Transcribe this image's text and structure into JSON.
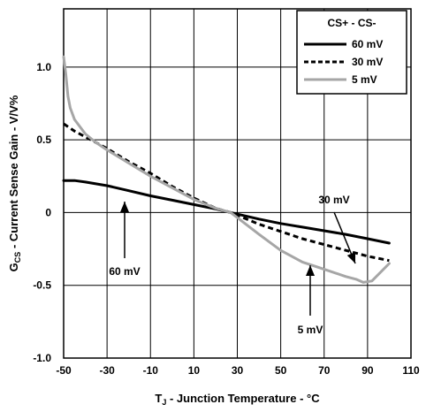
{
  "chart_data": {
    "type": "line",
    "xlabel_main": "T",
    "xlabel_sub": "J",
    "xlabel_rest": " - Junction Temperature - °C",
    "ylabel_main": "G",
    "ylabel_sub": "CS",
    "ylabel_rest": " - Current Sense Gain - V/V%",
    "xlim": [
      -50,
      110
    ],
    "ylim": [
      -1.0,
      1.4
    ],
    "x_ticks": [
      -50,
      -30,
      -10,
      10,
      30,
      50,
      70,
      90,
      110
    ],
    "x_tick_labels": [
      "-50",
      "-30",
      "-10",
      "10",
      "30",
      "50",
      "70",
      "90",
      "110"
    ],
    "y_ticks": [
      -1.0,
      -0.5,
      0,
      0.5,
      1.0
    ],
    "y_tick_labels": [
      "-1.0",
      "-0.5",
      "0",
      "0.5",
      "1.0"
    ],
    "grid": true,
    "legend_position": "top-right",
    "legend_title": "CS+ - CS-",
    "series": [
      {
        "name": "60 mV",
        "style": "solid",
        "color": "#000000",
        "x": [
          -50,
          -45,
          -40,
          -30,
          -20,
          -10,
          0,
          10,
          20,
          27,
          40,
          50,
          60,
          70,
          80,
          90,
          100
        ],
        "y": [
          0.22,
          0.22,
          0.21,
          0.185,
          0.15,
          0.115,
          0.085,
          0.055,
          0.025,
          0.0,
          -0.045,
          -0.075,
          -0.1,
          -0.125,
          -0.15,
          -0.18,
          -0.21
        ]
      },
      {
        "name": "30 mV",
        "style": "dashed",
        "color": "#000000",
        "x": [
          -50,
          -45,
          -40,
          -30,
          -20,
          -10,
          0,
          10,
          20,
          27,
          40,
          50,
          60,
          70,
          80,
          90,
          100
        ],
        "y": [
          0.61,
          0.56,
          0.52,
          0.44,
          0.35,
          0.27,
          0.18,
          0.1,
          0.03,
          0.0,
          -0.08,
          -0.13,
          -0.18,
          -0.22,
          -0.26,
          -0.3,
          -0.33
        ]
      },
      {
        "name": "5 mV",
        "style": "solid",
        "color": "#a6a6a6",
        "x": [
          -50,
          -49,
          -48,
          -47,
          -45,
          -42,
          -40,
          -35,
          -30,
          -20,
          -10,
          0,
          10,
          20,
          27,
          40,
          50,
          60,
          70,
          80,
          85,
          88,
          92,
          100
        ],
        "y": [
          1.07,
          0.95,
          0.8,
          0.72,
          0.64,
          0.58,
          0.54,
          0.48,
          0.43,
          0.34,
          0.25,
          0.17,
          0.09,
          0.03,
          0.0,
          -0.15,
          -0.26,
          -0.34,
          -0.39,
          -0.44,
          -0.46,
          -0.48,
          -0.47,
          -0.35
        ]
      }
    ],
    "annotations": [
      {
        "text": "60 mV",
        "arrow_to": [
          -20,
          0.15
        ]
      },
      {
        "text": "30 mV",
        "arrow_to": [
          90,
          -0.3
        ]
      },
      {
        "text": "5 mV",
        "arrow_to": [
          63,
          -0.37
        ]
      }
    ]
  }
}
